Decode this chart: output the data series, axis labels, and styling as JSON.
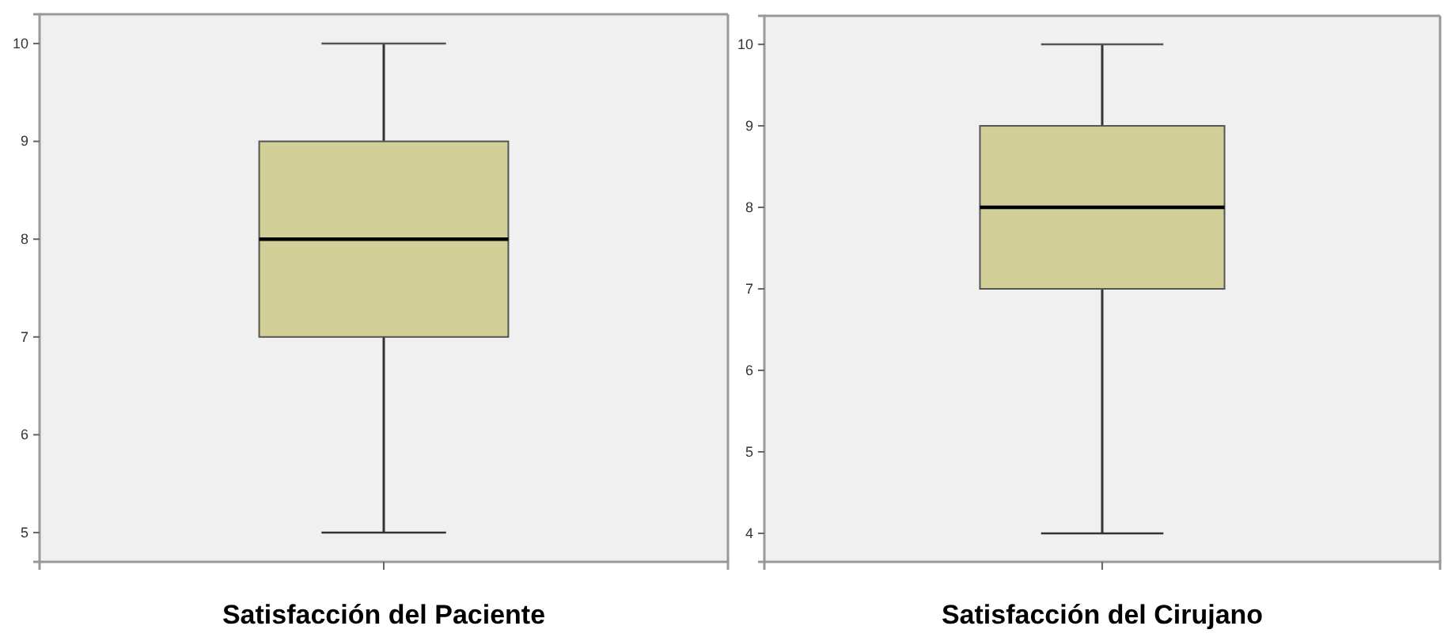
{
  "chart_data": [
    {
      "type": "box",
      "categories": [
        "Satisfacción del Paciente"
      ],
      "ylim": [
        4.7,
        10.3
      ],
      "yticks": [
        5,
        6,
        7,
        8,
        9,
        10
      ],
      "grid": false,
      "color": "#d3cf98",
      "boxes": [
        {
          "low": 5,
          "q1": 7,
          "median": 8,
          "q3": 9,
          "high": 10
        }
      ]
    },
    {
      "type": "box",
      "categories": [
        "Satisfacción del Cirujano"
      ],
      "ylim": [
        3.65,
        10.35
      ],
      "yticks": [
        4,
        5,
        6,
        7,
        8,
        9,
        10
      ],
      "grid": false,
      "color": "#d3cf98",
      "boxes": [
        {
          "low": 4,
          "q1": 7,
          "median": 8,
          "q3": 9,
          "high": 10
        }
      ]
    }
  ]
}
